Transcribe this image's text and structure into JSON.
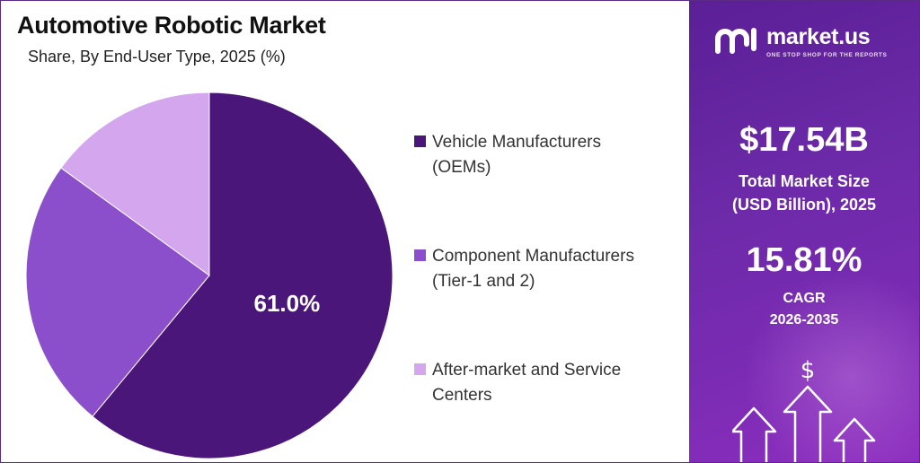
{
  "title": "Automotive Robotic Market",
  "subtitle": "Share, By End-User Type, 2025 (%)",
  "chart_data": {
    "type": "pie",
    "categories": [
      "Vehicle Manufacturers (OEMs)",
      "Component Manufacturers (Tier-1 and 2)",
      "After-market and Service Centers"
    ],
    "values": [
      61.0,
      24.0,
      15.0
    ],
    "data_labels": [
      "61.0%",
      "",
      ""
    ],
    "colors": [
      "#4a167a",
      "#8c4fcc",
      "#d3a6ee"
    ],
    "legend_placement": "right"
  },
  "legend": [
    {
      "line1": "Vehicle Manufacturers",
      "line2": "(OEMs)"
    },
    {
      "line1": "Component Manufacturers",
      "line2": "(Tier-1 and 2)"
    },
    {
      "line1": "After-market and Service",
      "line2": "Centers"
    }
  ],
  "brand": {
    "name": "market.us",
    "tagline": "ONE STOP SHOP FOR THE REPORTS"
  },
  "stats": {
    "market_size": "$17.54B",
    "market_size_label_1": "Total Market Size",
    "market_size_label_2": "(USD Billion), 2025",
    "cagr": "15.81%",
    "cagr_label_1": "CAGR",
    "cagr_label_2": "2026-2035"
  },
  "decor": {
    "currency_symbol": "$",
    "icon": "growth-arrows-icon"
  }
}
